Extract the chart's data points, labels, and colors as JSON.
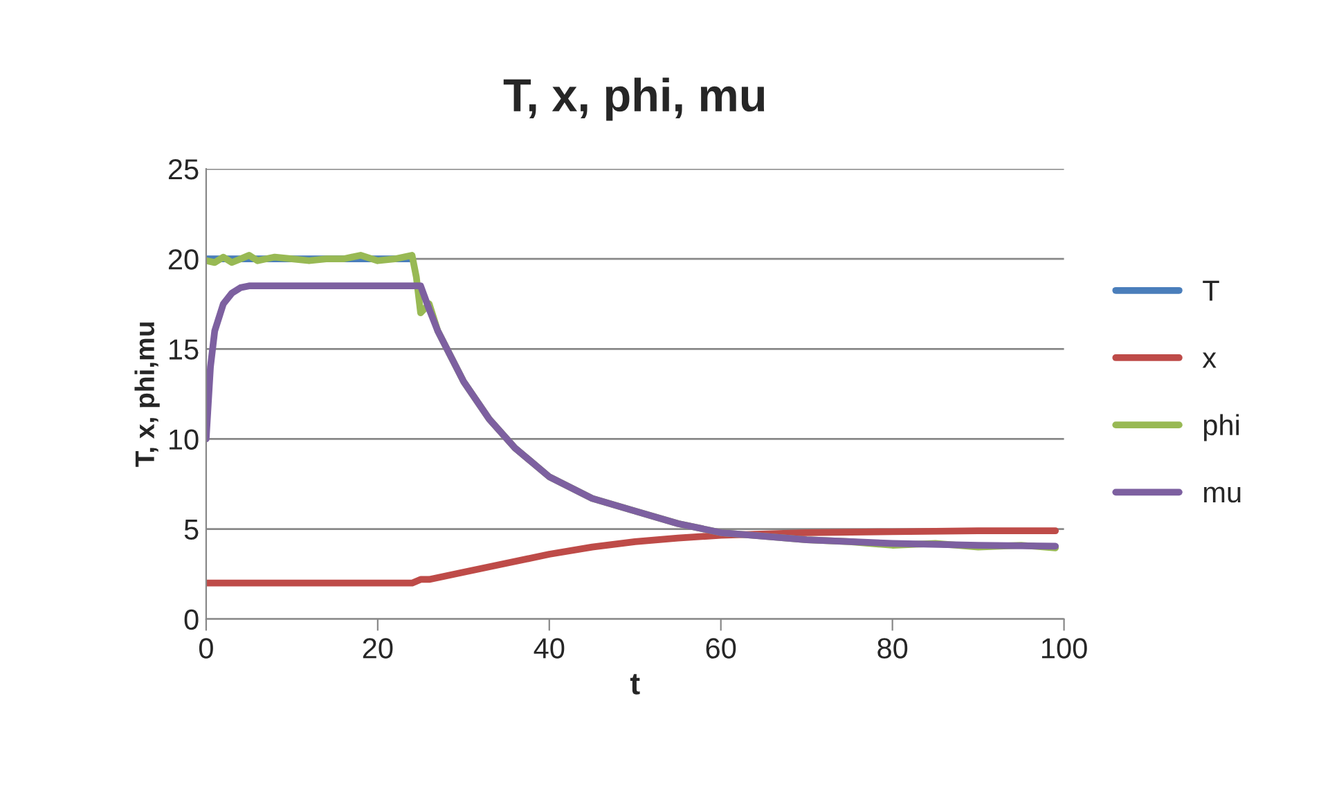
{
  "chart_data": {
    "type": "line",
    "title": "T, x, phi, mu",
    "xlabel": "t",
    "ylabel": "T, x, phi,mu",
    "xlim": [
      0,
      100
    ],
    "xticks": [
      0,
      20,
      40,
      60,
      80,
      100
    ],
    "ylim": [
      0,
      25
    ],
    "yticks": [
      0,
      5,
      10,
      15,
      20,
      25
    ],
    "grid": "y",
    "legend": "right",
    "marker": "none",
    "line_style": "solid",
    "series": [
      {
        "name": "T",
        "color": "#4a7ebb",
        "x": [
          0,
          5,
          10,
          15,
          20,
          24
        ],
        "values": [
          20,
          20,
          20,
          20,
          20,
          20
        ]
      },
      {
        "name": "x",
        "color": "#be4b48",
        "x": [
          0,
          10,
          20,
          24,
          25,
          26,
          30,
          35,
          40,
          45,
          50,
          55,
          60,
          70,
          80,
          90,
          99
        ],
        "values": [
          2,
          2,
          2,
          2,
          2.2,
          2.2,
          2.6,
          3.1,
          3.6,
          4.0,
          4.3,
          4.5,
          4.65,
          4.8,
          4.85,
          4.9,
          4.9
        ]
      },
      {
        "name": "phi",
        "color": "#98b954",
        "x": [
          0,
          1,
          2,
          3,
          4,
          5,
          6,
          8,
          10,
          12,
          14,
          16,
          18,
          20,
          22,
          24,
          24.5,
          25,
          26,
          27,
          30,
          33,
          36,
          40,
          45,
          50,
          55,
          60,
          65,
          70,
          75,
          80,
          85,
          90,
          95,
          99
        ],
        "values": [
          19.9,
          19.8,
          20.1,
          19.8,
          20.0,
          20.2,
          19.9,
          20.1,
          20.0,
          19.9,
          20.0,
          20.0,
          20.2,
          19.9,
          20.0,
          20.2,
          19.0,
          17.0,
          17.5,
          16,
          13.2,
          11.1,
          9.5,
          7.9,
          6.7,
          6.0,
          5.3,
          4.8,
          4.6,
          4.4,
          4.3,
          4.1,
          4.2,
          4.0,
          4.1,
          3.95
        ]
      },
      {
        "name": "mu",
        "color": "#7d60a0",
        "x": [
          0,
          0.5,
          1,
          2,
          3,
          4,
          5,
          7,
          10,
          15,
          20,
          24,
          25,
          26,
          27,
          30,
          33,
          36,
          40,
          45,
          50,
          55,
          60,
          70,
          80,
          90,
          99
        ],
        "values": [
          10,
          14,
          16,
          17.5,
          18.1,
          18.4,
          18.5,
          18.5,
          18.5,
          18.5,
          18.5,
          18.5,
          18.5,
          17.2,
          16,
          13.2,
          11.1,
          9.5,
          7.9,
          6.7,
          6.0,
          5.3,
          4.8,
          4.4,
          4.2,
          4.1,
          4.05
        ]
      }
    ]
  }
}
